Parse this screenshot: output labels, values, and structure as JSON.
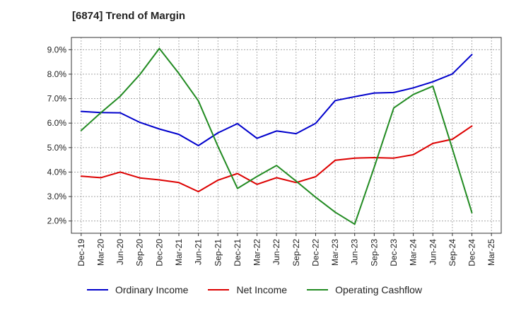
{
  "title": "[6874]  Trend of Margin",
  "chart_data": {
    "type": "line",
    "title": "[6874]  Trend of Margin",
    "xlabel": "",
    "ylabel": "",
    "categories": [
      "Dec-19",
      "Mar-20",
      "Jun-20",
      "Sep-20",
      "Dec-20",
      "Mar-21",
      "Jun-21",
      "Sep-21",
      "Dec-21",
      "Mar-22",
      "Jun-22",
      "Sep-22",
      "Dec-22",
      "Mar-23",
      "Jun-23",
      "Sep-23",
      "Dec-23",
      "Mar-24",
      "Jun-24",
      "Sep-24",
      "Dec-24",
      "Mar-25"
    ],
    "y_ticks": [
      "2.0%",
      "3.0%",
      "4.0%",
      "5.0%",
      "6.0%",
      "7.0%",
      "8.0%",
      "9.0%"
    ],
    "ylim": [
      1.5,
      9.5
    ],
    "grid": true,
    "legend_position": "bottom",
    "series": [
      {
        "name": "Ordinary Income",
        "color": "#0000cc",
        "values": [
          6.48,
          6.43,
          6.42,
          6.03,
          5.76,
          5.54,
          5.08,
          5.6,
          5.98,
          5.38,
          5.68,
          5.57,
          5.99,
          6.92,
          7.08,
          7.23,
          7.25,
          7.44,
          7.69,
          8.01,
          8.8,
          null
        ]
      },
      {
        "name": "Net Income",
        "color": "#dd0000",
        "values": [
          3.83,
          3.77,
          4.0,
          3.76,
          3.68,
          3.57,
          3.2,
          3.67,
          3.94,
          3.5,
          3.77,
          3.57,
          3.81,
          4.48,
          4.57,
          4.59,
          4.57,
          4.71,
          5.17,
          5.34,
          5.88,
          null
        ]
      },
      {
        "name": "Operating Cashflow",
        "color": "#228b22",
        "values": [
          5.7,
          6.42,
          7.1,
          7.98,
          9.05,
          8.03,
          6.91,
          5.05,
          3.33,
          3.82,
          4.27,
          3.63,
          2.97,
          2.36,
          1.87,
          4.2,
          6.62,
          7.17,
          7.51,
          4.95,
          2.34,
          null
        ]
      }
    ]
  }
}
